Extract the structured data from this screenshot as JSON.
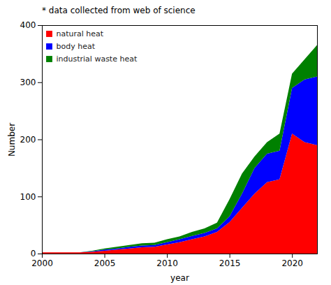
{
  "chart_data": {
    "type": "area",
    "stacked": true,
    "title": "* data collected from web of science",
    "xlabel": "year",
    "ylabel": "Number",
    "x": [
      2000,
      2001,
      2002,
      2003,
      2004,
      2005,
      2006,
      2007,
      2008,
      2009,
      2010,
      2011,
      2012,
      2013,
      2014,
      2015,
      2016,
      2017,
      2018,
      2019,
      2020,
      2021,
      2022
    ],
    "series": [
      {
        "name": "natural heat",
        "color": "#ff0000",
        "values": [
          2,
          2,
          2,
          2,
          3,
          5,
          7,
          9,
          11,
          12,
          16,
          20,
          25,
          30,
          38,
          55,
          80,
          105,
          125,
          130,
          210,
          195,
          190
        ]
      },
      {
        "name": "body heat",
        "color": "#0000ff",
        "values": [
          0,
          0,
          0,
          0,
          1,
          2,
          2,
          3,
          3,
          3,
          4,
          5,
          6,
          6,
          6,
          10,
          25,
          45,
          50,
          50,
          80,
          110,
          120
        ]
      },
      {
        "name": "industrial waste heat",
        "color": "#008000",
        "values": [
          0,
          0,
          0,
          0,
          1,
          2,
          3,
          3,
          4,
          4,
          5,
          5,
          7,
          8,
          10,
          30,
          35,
          20,
          20,
          30,
          25,
          35,
          55
        ]
      }
    ],
    "xlim": [
      2000,
      2022
    ],
    "xticks": [
      2000,
      2005,
      2010,
      2015,
      2020
    ],
    "ylim": [
      0,
      400
    ],
    "yticks": [
      0,
      100,
      200,
      300,
      400
    ],
    "legend": "upper left",
    "grid": false
  }
}
